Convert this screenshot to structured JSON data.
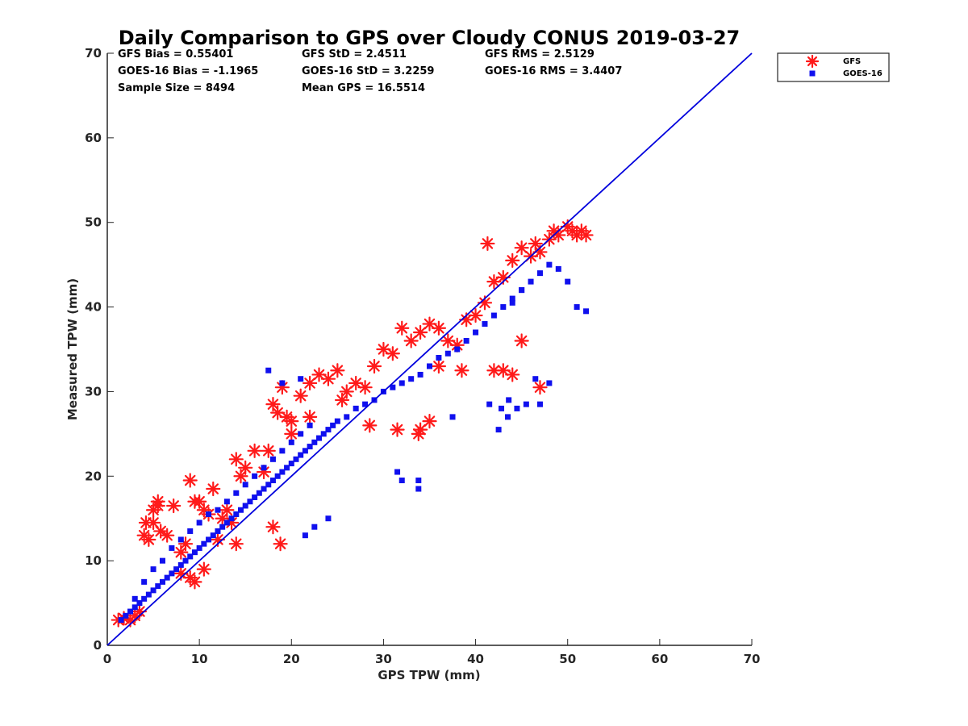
{
  "chart_data": {
    "type": "scatter",
    "title": "Daily Comparison to GPS over Cloudy CONUS 2019-03-27",
    "xlabel": "GPS TPW (mm)",
    "ylabel": "Measured TPW (mm)",
    "xlim": [
      0,
      70
    ],
    "ylim": [
      0,
      70
    ],
    "xticks": [
      "0",
      "10",
      "20",
      "30",
      "40",
      "50",
      "60",
      "70"
    ],
    "yticks": [
      "0",
      "10",
      "20",
      "30",
      "40",
      "50",
      "60",
      "70"
    ],
    "grid": false,
    "legend_position": "outside top-right",
    "stats": [
      [
        "GFS Bias = 0.55401",
        "GFS StD = 2.4511",
        "GFS RMS = 2.5129"
      ],
      [
        "GOES-16 Bias = -1.1965",
        "GOES-16 StD = 3.2259",
        "GOES-16 RMS = 3.4407"
      ],
      [
        "Sample Size = 8494",
        "Mean GPS = 16.5514",
        ""
      ]
    ],
    "reference_line": {
      "x": [
        0,
        70
      ],
      "y": [
        0,
        70
      ],
      "color": "#0000dd"
    },
    "series": [
      {
        "name": "GFS",
        "marker": "asterisk",
        "color": "#ff1a1a",
        "x": [
          1.2,
          1.8,
          2.5,
          3.0,
          3.5,
          4.0,
          4.2,
          4.5,
          5.0,
          5.5,
          5.8,
          6.5,
          7.2,
          8.0,
          8.5,
          9.0,
          9.5,
          10.0,
          10.5,
          11.0,
          11.5,
          12.0,
          12.5,
          13.0,
          13.5,
          14.0,
          14.5,
          15.0,
          16.0,
          17.0,
          17.5,
          18.0,
          18.5,
          19.0,
          19.5,
          20.0,
          21.0,
          22.0,
          23.0,
          24.0,
          25.0,
          26.0,
          27.0,
          28.0,
          29.0,
          30.0,
          31.0,
          32.0,
          33.0,
          34.0,
          35.0,
          36.0,
          37.0,
          38.0,
          39.0,
          40.0,
          41.0,
          41.3,
          42.0,
          43.0,
          44.0,
          45.0,
          46.0,
          46.5,
          47.0,
          48.0,
          48.5,
          49.0,
          50.0,
          50.5,
          51.0,
          51.5,
          52.0,
          5.0,
          5.5,
          8.0,
          9.0,
          9.5,
          10.5,
          14.0,
          18.0,
          18.8,
          20.0,
          22.0,
          25.5,
          28.5,
          31.5,
          33.8,
          34.0,
          35.0,
          36.0,
          38.5,
          42.0,
          43.0,
          44.0,
          45.0,
          47.0
        ],
        "y": [
          3.0,
          3.2,
          3.0,
          3.5,
          4.0,
          13.0,
          14.5,
          12.5,
          16.0,
          17.0,
          13.5,
          13.0,
          16.5,
          11.0,
          12.0,
          19.5,
          17.0,
          17.0,
          16.0,
          15.5,
          18.5,
          12.5,
          15.0,
          16.0,
          14.5,
          22.0,
          20.0,
          21.0,
          23.0,
          20.5,
          23.0,
          28.5,
          27.5,
          30.5,
          27.0,
          25.0,
          29.5,
          31.0,
          32.0,
          31.5,
          32.5,
          30.0,
          31.0,
          30.5,
          33.0,
          35.0,
          34.5,
          37.5,
          36.0,
          37.0,
          38.0,
          37.5,
          36.0,
          35.5,
          38.5,
          39.0,
          40.5,
          47.5,
          43.0,
          43.5,
          45.5,
          47.0,
          46.0,
          47.5,
          46.5,
          48.0,
          49.0,
          48.5,
          49.5,
          49.0,
          48.5,
          49.0,
          48.5,
          14.5,
          16.5,
          8.5,
          8.0,
          7.5,
          9.0,
          12.0,
          14.0,
          12.0,
          26.5,
          27.0,
          29.0,
          26.0,
          25.5,
          25.0,
          25.5,
          26.5,
          33.0,
          32.5,
          32.5,
          32.5,
          32.0,
          36.0,
          30.5
        ]
      },
      {
        "name": "GOES-16",
        "marker": "square",
        "color": "#1010ee",
        "x": [
          1.5,
          2.0,
          2.5,
          3.0,
          3.5,
          4.0,
          4.5,
          5.0,
          5.5,
          6.0,
          6.5,
          7.0,
          7.5,
          8.0,
          8.5,
          9.0,
          9.5,
          10.0,
          10.5,
          11.0,
          11.5,
          12.0,
          12.5,
          13.0,
          13.5,
          14.0,
          14.5,
          15.0,
          15.5,
          16.0,
          16.5,
          17.0,
          17.5,
          18.0,
          18.5,
          19.0,
          19.5,
          20.0,
          20.5,
          21.0,
          21.5,
          22.0,
          22.5,
          23.0,
          23.5,
          24.0,
          24.5,
          25.0,
          26.0,
          27.0,
          28.0,
          29.0,
          30.0,
          31.0,
          32.0,
          33.0,
          34.0,
          35.0,
          36.0,
          37.0,
          38.0,
          39.0,
          40.0,
          41.0,
          42.0,
          43.0,
          44.0,
          45.0,
          46.0,
          47.0,
          48.0,
          49.0,
          50.0,
          51.0,
          52.0,
          3.0,
          4.0,
          5.0,
          6.0,
          7.0,
          8.0,
          9.0,
          10.0,
          11.0,
          12.0,
          13.0,
          14.0,
          15.0,
          16.0,
          17.0,
          18.0,
          19.0,
          20.0,
          21.0,
          22.0,
          17.5,
          19.0,
          21.0,
          31.5,
          32.0,
          33.8,
          33.8,
          37.5,
          42.5,
          43.5,
          44.5,
          45.5,
          47.0,
          48.0,
          44.0,
          45.0,
          41.5,
          42.8,
          43.6,
          46.5,
          21.5,
          22.5,
          24.0
        ],
        "y": [
          3.0,
          3.5,
          4.0,
          4.5,
          5.0,
          5.5,
          6.0,
          6.5,
          7.0,
          7.5,
          8.0,
          8.5,
          9.0,
          9.5,
          10.0,
          10.5,
          11.0,
          11.5,
          12.0,
          12.5,
          13.0,
          13.5,
          14.0,
          14.5,
          15.0,
          15.5,
          16.0,
          16.5,
          17.0,
          17.5,
          18.0,
          18.5,
          19.0,
          19.5,
          20.0,
          20.5,
          21.0,
          21.5,
          22.0,
          22.5,
          23.0,
          23.5,
          24.0,
          24.5,
          25.0,
          25.5,
          26.0,
          26.5,
          27.0,
          28.0,
          28.5,
          29.0,
          30.0,
          30.5,
          31.0,
          31.5,
          32.0,
          33.0,
          34.0,
          34.5,
          35.0,
          36.0,
          37.0,
          38.0,
          39.0,
          40.0,
          41.0,
          42.0,
          43.0,
          44.0,
          45.0,
          44.5,
          43.0,
          40.0,
          39.5,
          5.5,
          7.5,
          9.0,
          10.0,
          11.5,
          12.5,
          13.5,
          14.5,
          15.5,
          16.0,
          17.0,
          18.0,
          19.0,
          20.0,
          21.0,
          22.0,
          23.0,
          24.0,
          25.0,
          26.0,
          32.5,
          31.0,
          31.5,
          20.5,
          19.5,
          19.5,
          18.5,
          27.0,
          25.5,
          27.0,
          28.0,
          28.5,
          28.5,
          31.0,
          40.5,
          42.0,
          28.5,
          28.0,
          29.0,
          31.5,
          13.0,
          14.0,
          15.0
        ]
      }
    ]
  }
}
